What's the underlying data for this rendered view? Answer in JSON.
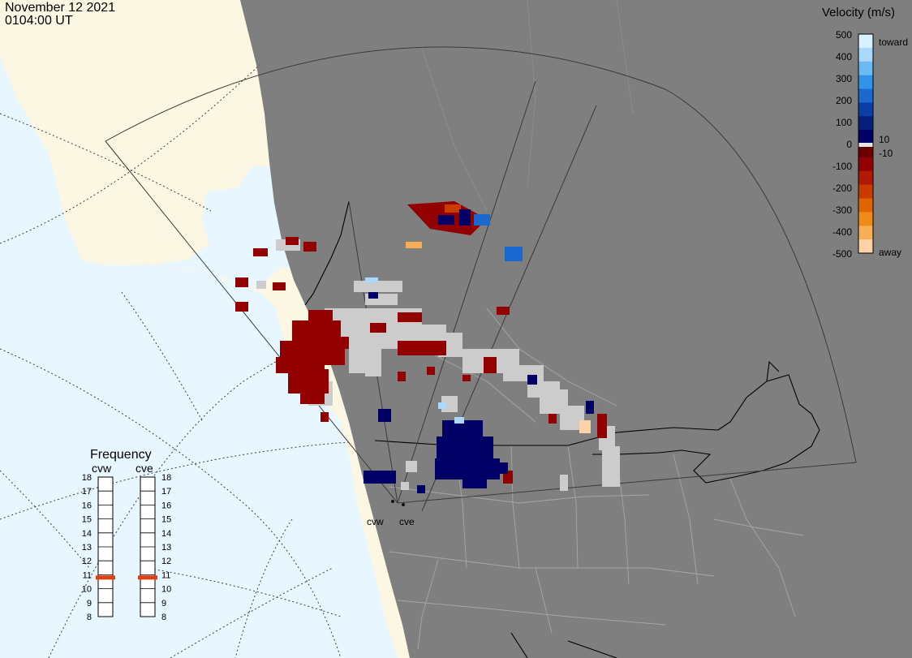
{
  "header": {
    "date": "November 12 2021",
    "time": "0104:00 UT"
  },
  "colors": {
    "ocean": "#e8f6ff",
    "land_day": "#fbf7e3",
    "land_night": "#7f7f7f",
    "border": "#000000",
    "state_lines": "#a6a6a6",
    "fov": "#3a3a3a",
    "ground_scatter": "#cccccc",
    "marker": "#e04010"
  },
  "legend": {
    "title": "Velocity (m/s)",
    "toward_label": "toward",
    "away_label": "away",
    "ticks": [
      "500",
      "400",
      "300",
      "200",
      "100",
      "0",
      "-100",
      "-200",
      "-300",
      "-400",
      "-500"
    ],
    "small_ticks": [
      "10",
      "-10"
    ],
    "colors": [
      "#d8f0ff",
      "#aad9fb",
      "#6cbaf2",
      "#3294e8",
      "#1a68d0",
      "#0d3ea8",
      "#061e7c",
      "#000066",
      "#6a0000",
      "#920000",
      "#b01a00",
      "#c83c00",
      "#e06500",
      "#f08a18",
      "#f7ae55",
      "#fcd2a6"
    ]
  },
  "frequency": {
    "title": "Frequency",
    "scale": [
      "18",
      "17",
      "16",
      "15",
      "14",
      "13",
      "12",
      "11",
      "10",
      "9",
      "8"
    ],
    "range_mhz": [
      8,
      18
    ],
    "radars": [
      {
        "name": "cvw",
        "mhz": 10.8
      },
      {
        "name": "cve",
        "mhz": 10.8
      }
    ]
  },
  "stations": [
    {
      "name": "cvw"
    },
    {
      "name": "cve"
    }
  ]
}
